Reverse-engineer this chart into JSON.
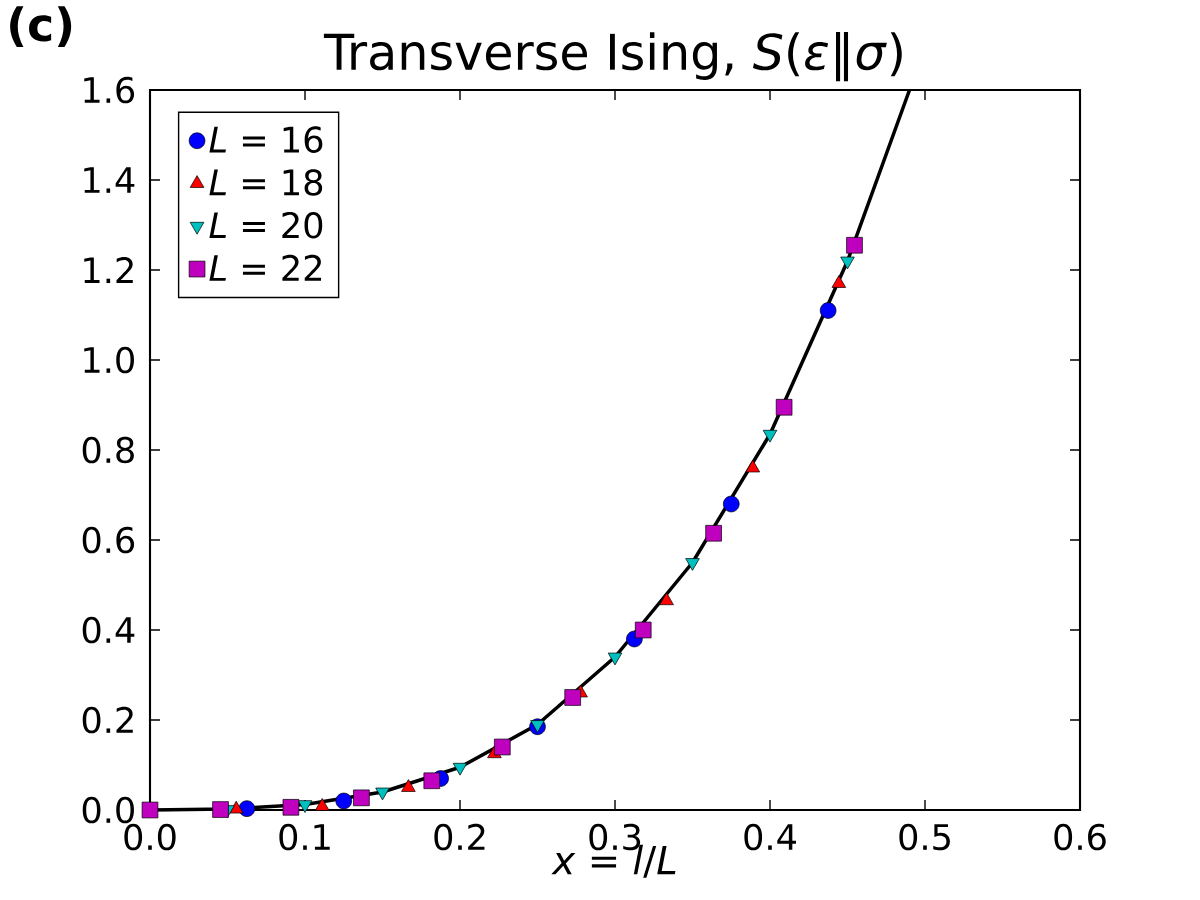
{
  "chart_data": {
    "type": "scatter",
    "title": "Transverse Ising, *S*(*ε*‖*σ*)",
    "xlabel": "*x* = *l*/*L*",
    "annotations": [
      "**(c)**"
    ],
    "xlim": [
      0,
      0.6
    ],
    "ylim": [
      0,
      1.6
    ],
    "xticks": [
      {
        "value": 0,
        "label": "0.0"
      },
      {
        "value": 0.1,
        "label": "0.1"
      },
      {
        "value": 0.2,
        "label": "0.2"
      },
      {
        "value": 0.3,
        "label": "0.3"
      },
      {
        "value": 0.4,
        "label": "0.4"
      },
      {
        "value": 0.5,
        "label": "0.5"
      },
      {
        "value": 0.6,
        "label": "0.6"
      }
    ],
    "yticks": [
      {
        "value": 0,
        "label": "0.0"
      },
      {
        "value": 0.2,
        "label": "0.2"
      },
      {
        "value": 0.4,
        "label": "0.4"
      },
      {
        "value": 0.6,
        "label": "0.6"
      },
      {
        "value": 0.8,
        "label": "0.8"
      },
      {
        "value": 1.0,
        "label": "1.0"
      },
      {
        "value": 1.2,
        "label": "1.2"
      },
      {
        "value": 1.4,
        "label": "1.4"
      },
      {
        "value": 1.6,
        "label": "1.6"
      }
    ],
    "legend": "top left",
    "series": [
      {
        "name": "*L* = 16",
        "color": "#0000ff",
        "marker": "circle",
        "x": [
          0.0625,
          0.125,
          0.1875,
          0.25,
          0.3125,
          0.375,
          0.4375
        ],
        "values": [
          0.003,
          0.02,
          0.07,
          0.185,
          0.38,
          0.68,
          1.11
        ]
      },
      {
        "name": "*L* = 18",
        "color": "#ff0000",
        "marker": "triangle",
        "x": [
          0.0556,
          0.1111,
          0.1667,
          0.2222,
          0.2778,
          0.3333,
          0.3889,
          0.4444
        ],
        "values": [
          0.002,
          0.008,
          0.05,
          0.125,
          0.26,
          0.465,
          0.76,
          1.17
        ]
      },
      {
        "name": "*L* = 20",
        "color": "#00bfbf",
        "marker": "triangle_down",
        "x": [
          0.05,
          0.1,
          0.15,
          0.2,
          0.25,
          0.3,
          0.35,
          0.4,
          0.45
        ],
        "values": [
          0.001,
          0.012,
          0.04,
          0.095,
          0.19,
          0.34,
          0.55,
          0.835,
          1.22
        ]
      },
      {
        "name": "*L* = 22",
        "color": "#bf00bf",
        "marker": "square",
        "x": [
          0,
          0.0455,
          0.0909,
          0.1364,
          0.1818,
          0.2273,
          0.2727,
          0.3182,
          0.3636,
          0.4091,
          0.4545
        ],
        "values": [
          0,
          0.001,
          0.006,
          0.027,
          0.065,
          0.14,
          0.25,
          0.4,
          0.615,
          0.895,
          1.255
        ]
      },
      {
        "type": "line",
        "color": "#000000",
        "marker": "none",
        "x": [
          0,
          0.05,
          0.1,
          0.15,
          0.2,
          0.25,
          0.3,
          0.35,
          0.4,
          0.45,
          0.49
        ],
        "values": [
          0,
          0.002,
          0.012,
          0.04,
          0.095,
          0.19,
          0.34,
          0.55,
          0.835,
          1.22,
          1.6
        ]
      }
    ]
  }
}
